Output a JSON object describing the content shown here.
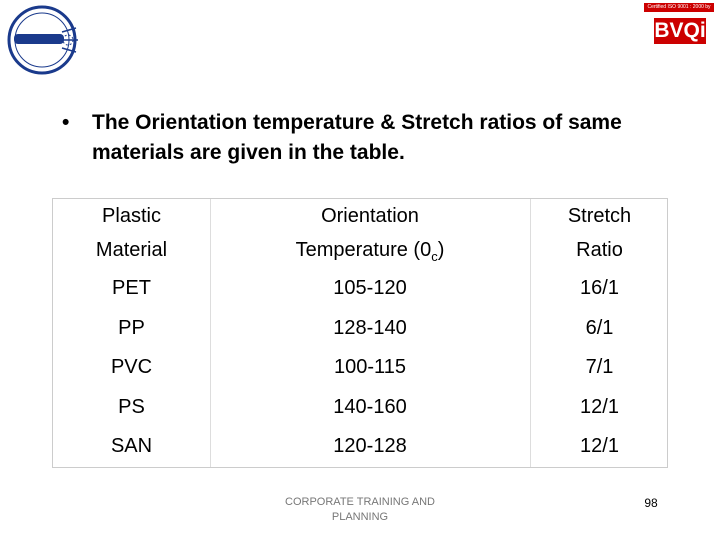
{
  "logo_right": {
    "caption": "Certified ISO 9001 : 2000 by",
    "name": "BVQi"
  },
  "bullet": "The Orientation temperature & Stretch ratios of same materials are given in the table.",
  "table": {
    "header": [
      {
        "line1": "Plastic",
        "line2": "Material"
      },
      {
        "line1": "Orientation",
        "line2": "Temperature (0",
        "subscript": "c",
        "line2_end": ")"
      },
      {
        "line1": "Stretch",
        "line2": "Ratio"
      }
    ],
    "rows": [
      [
        "PET",
        "105-120",
        "16/1"
      ],
      [
        "PP",
        "128-140",
        "6/1"
      ],
      [
        "PVC",
        "100-115",
        "7/1"
      ],
      [
        "PS",
        "140-160",
        "12/1"
      ],
      [
        "SAN",
        "120-128",
        "12/1"
      ]
    ]
  },
  "footer": {
    "line1": "CORPORATE TRAINING AND",
    "line2": "PLANNING"
  },
  "page_number": "98"
}
